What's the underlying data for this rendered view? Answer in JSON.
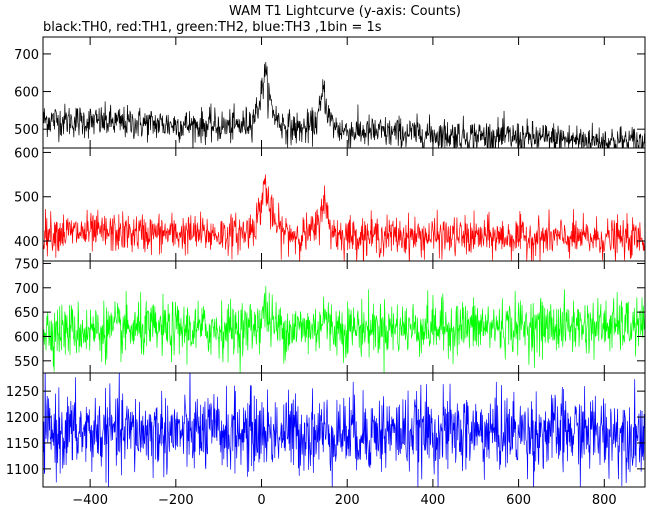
{
  "chart_data": {
    "type": "line",
    "title": "WAM T1 Lightcurve (y-axis: Counts)",
    "subtitle": "black:TH0, red:TH1, green:TH2, blue:TH3 ,1bin = 1s",
    "xlim": [
      -510,
      895
    ],
    "x_ticks": [
      -400,
      -200,
      0,
      200,
      400,
      600,
      800
    ],
    "x_tick_labels": [
      "−400",
      "−200",
      "0",
      "200",
      "400",
      "600",
      "800"
    ],
    "bin_seconds": 1,
    "grid": false,
    "panels": [
      {
        "series": "TH0",
        "color": "#000000",
        "ylim": [
          450,
          745
        ],
        "y_ticks": [
          500,
          600,
          700
        ],
        "y_tick_labels": [
          "500",
          "600",
          "700"
        ],
        "baseline_start": 525,
        "baseline_end": 465,
        "noise": 22,
        "peaks": [
          {
            "x": 8,
            "amplitude": 155,
            "width": 16
          },
          {
            "x": 145,
            "amplitude": 120,
            "width": 11
          }
        ]
      },
      {
        "series": "TH1",
        "color": "#ff0000",
        "ylim": [
          355,
          610
        ],
        "y_ticks": [
          400,
          500,
          600
        ],
        "y_tick_labels": [
          "400",
          "500",
          "600"
        ],
        "baseline_start": 420,
        "baseline_end": 405,
        "noise": 22,
        "peaks": [
          {
            "x": 8,
            "amplitude": 125,
            "width": 15
          },
          {
            "x": 145,
            "amplitude": 95,
            "width": 10
          }
        ]
      },
      {
        "series": "TH2",
        "color": "#00ff00",
        "ylim": [
          525,
          755
        ],
        "y_ticks": [
          550,
          600,
          650,
          700,
          750
        ],
        "y_tick_labels": [
          "550",
          "600",
          "650",
          "700",
          "750"
        ],
        "baseline_start": 612,
        "baseline_end": 622,
        "noise": 28,
        "peaks": [
          {
            "x": 8,
            "amplitude": 45,
            "width": 12
          },
          {
            "x": 145,
            "amplitude": 35,
            "width": 6
          }
        ]
      },
      {
        "series": "TH3",
        "color": "#0000ff",
        "ylim": [
          1065,
          1285
        ],
        "y_ticks": [
          1100,
          1150,
          1200,
          1250
        ],
        "y_tick_labels": [
          "1100",
          "1150",
          "1200",
          "1250"
        ],
        "baseline_start": 1170,
        "baseline_end": 1170,
        "noise": 38,
        "peaks": []
      }
    ]
  }
}
